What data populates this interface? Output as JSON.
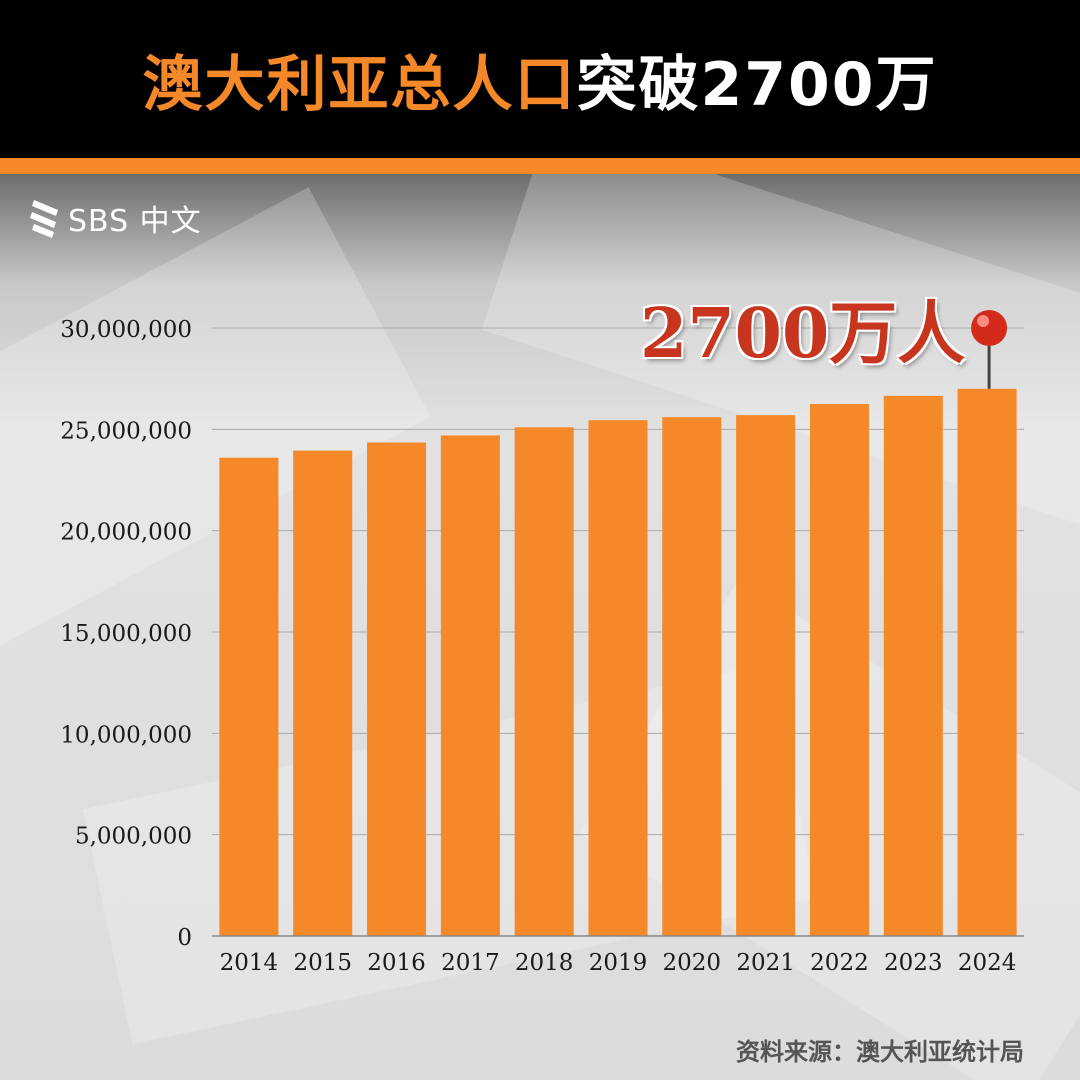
{
  "header": {
    "title_accent": "澳大利亚总人口",
    "title_plain": "突破2700万"
  },
  "logo": {
    "text": "SBS 中文",
    "icon": "sbs-logo-icon"
  },
  "callout": {
    "text": "2700万人",
    "icon": "red-pushpin-icon"
  },
  "source": "资料来源：澳大利亚统计局",
  "colors": {
    "accent": "#f5892a",
    "bar": "#f5892a",
    "callout": "#c7351f",
    "header_bg": "#000000"
  },
  "chart_data": {
    "type": "bar",
    "title": "澳大利亚总人口突破2700万",
    "xlabel": "",
    "ylabel": "",
    "categories": [
      "2014",
      "2015",
      "2016",
      "2017",
      "2018",
      "2019",
      "2020",
      "2021",
      "2022",
      "2023",
      "2024"
    ],
    "values": [
      23600000,
      23950000,
      24350000,
      24700000,
      25100000,
      25450000,
      25600000,
      25700000,
      26250000,
      26650000,
      27000000
    ],
    "ylim": [
      0,
      30000000
    ],
    "yticks": [
      0,
      5000000,
      10000000,
      15000000,
      20000000,
      25000000,
      30000000
    ],
    "ytick_labels": [
      "0",
      "5,000,000",
      "10,000,000",
      "15,000,000",
      "20,000,000",
      "25,000,000",
      "30,000,000"
    ],
    "grid": true,
    "legend": "none"
  }
}
